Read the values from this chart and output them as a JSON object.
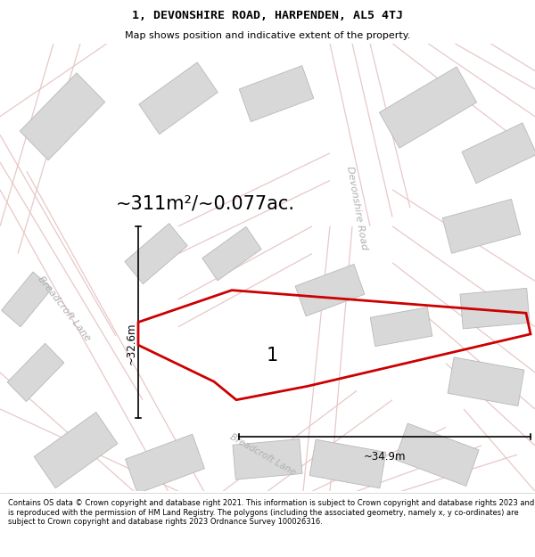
{
  "title_line1": "1, DEVONSHIRE ROAD, HARPENDEN, AL5 4TJ",
  "title_line2": "Map shows position and indicative extent of the property.",
  "area_text": "~311m²/~0.077ac.",
  "label_1": "1",
  "dim_width": "~34.9m",
  "dim_height": "~32.6m",
  "footer": "Contains OS data © Crown copyright and database right 2021. This information is subject to Crown copyright and database rights 2023 and is reproduced with the permission of HM Land Registry. The polygons (including the associated geometry, namely x, y co-ordinates) are subject to Crown copyright and database rights 2023 Ordnance Survey 100026316.",
  "bg_color": "#f2f2f2",
  "road_color": "#e8c8c8",
  "road_color2": "#d0d0d0",
  "building_color": "#d8d8d8",
  "building_edge": "#b8b8b8",
  "highlight_color": "#cc0000",
  "street_color": "#b0b0b0",
  "street_label_breadcroft_lane": "Breadcroft Lane",
  "street_label_devonshire": "Devonshire Road",
  "street_label_breadcro": "Breadcroft Lane"
}
